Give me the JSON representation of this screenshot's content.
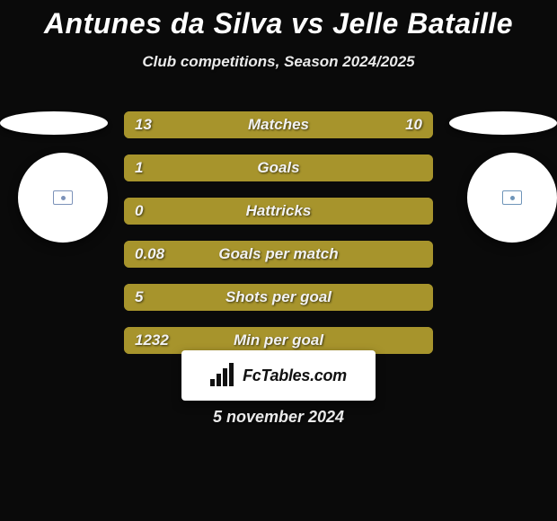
{
  "header": {
    "player1": "Antunes da Silva",
    "vs": "vs",
    "player2": "Jelle Bataille",
    "title_fontsize": 32,
    "subtitle": "Club competitions, Season 2024/2025",
    "subtitle_fontsize": 17
  },
  "colors": {
    "background": "#0a0a0a",
    "bar_left": "#a7942c",
    "bar_right": "#a7942c",
    "bar_track": "#a7942c",
    "text_light": "#f2f2f2",
    "panel_white": "#ffffff",
    "left_chip": "#7c92b9",
    "right_chip": "#6f95b9"
  },
  "bars": {
    "label_fontsize": 17,
    "value_fontsize": 17,
    "rows": [
      {
        "label": "Matches",
        "left_val": "13",
        "right_val": "10",
        "left_pct": 56,
        "right_pct": 44
      },
      {
        "label": "Goals",
        "left_val": "1",
        "right_val": "",
        "left_pct": 100,
        "right_pct": 0
      },
      {
        "label": "Hattricks",
        "left_val": "0",
        "right_val": "",
        "left_pct": 100,
        "right_pct": 0
      },
      {
        "label": "Goals per match",
        "left_val": "0.08",
        "right_val": "",
        "left_pct": 100,
        "right_pct": 0
      },
      {
        "label": "Shots per goal",
        "left_val": "5",
        "right_val": "",
        "left_pct": 100,
        "right_pct": 0
      },
      {
        "label": "Min per goal",
        "left_val": "1232",
        "right_val": "",
        "left_pct": 100,
        "right_pct": 0
      }
    ]
  },
  "footer": {
    "brand": "FcTables.com",
    "brand_fontsize": 18,
    "date": "5 november 2024",
    "date_fontsize": 18
  }
}
